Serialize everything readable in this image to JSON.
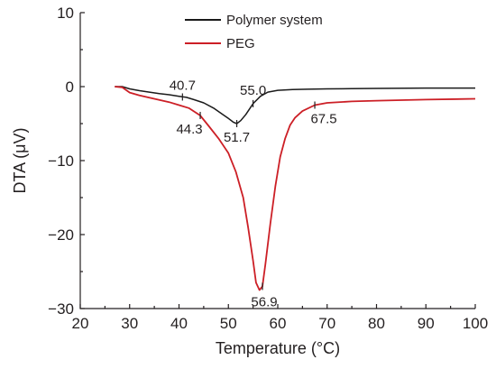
{
  "chart_data": {
    "type": "line",
    "xlabel": "Temperature (°C)",
    "ylabel": "DTA (μV)",
    "xlim": [
      20,
      100
    ],
    "ylim": [
      -30,
      10
    ],
    "xticks": [
      20,
      30,
      40,
      50,
      60,
      70,
      80,
      90,
      100
    ],
    "yticks": [
      10,
      0,
      -10,
      -20,
      -30
    ],
    "grid": false,
    "legend_position": "top-center",
    "series": [
      {
        "name": "Polymer system",
        "color": "#1a1a1a",
        "x": [
          27.0,
          28.5,
          30,
          32,
          34,
          36,
          38,
          40,
          41.5,
          43,
          45,
          47,
          48.5,
          50,
          51,
          51.7,
          52.5,
          53.5,
          55,
          56.5,
          58,
          60,
          63,
          66,
          70,
          75,
          80,
          90,
          100
        ],
        "y": [
          0.0,
          0.0,
          -0.3,
          -0.55,
          -0.75,
          -0.95,
          -1.1,
          -1.3,
          -1.45,
          -1.75,
          -2.2,
          -2.9,
          -3.6,
          -4.3,
          -4.8,
          -5.0,
          -4.6,
          -3.8,
          -2.3,
          -1.3,
          -0.75,
          -0.5,
          -0.4,
          -0.35,
          -0.3,
          -0.28,
          -0.25,
          -0.2,
          -0.2
        ]
      },
      {
        "name": "PEG",
        "color": "#cc1f26",
        "x": [
          27.0,
          28.5,
          30,
          32,
          34,
          36,
          38,
          40,
          42,
          44.3,
          46,
          48,
          50,
          51.5,
          53,
          54,
          55,
          55.6,
          56.3,
          56.9,
          57.5,
          58.5,
          59.5,
          60.5,
          61.5,
          62.5,
          63.5,
          65,
          67.5,
          70,
          75,
          80,
          90,
          100
        ],
        "y": [
          0.0,
          -0.1,
          -0.8,
          -1.2,
          -1.5,
          -1.8,
          -2.1,
          -2.5,
          -2.9,
          -3.9,
          -5.3,
          -7.0,
          -9.0,
          -11.5,
          -15.0,
          -19.0,
          -23.5,
          -26.5,
          -27.5,
          -27.0,
          -24.0,
          -18.5,
          -13.5,
          -9.5,
          -7.0,
          -5.2,
          -4.2,
          -3.3,
          -2.5,
          -2.2,
          -2.0,
          -1.9,
          -1.75,
          -1.65
        ]
      }
    ],
    "annotations": [
      {
        "text": "40.7",
        "series": 0,
        "x": 40.7,
        "y": -1.4
      },
      {
        "text": "55.0",
        "series": 0,
        "x": 55.0,
        "y": -2.3
      },
      {
        "text": "51.7",
        "series": 0,
        "x": 51.7,
        "y": -5.0
      },
      {
        "text": "44.3",
        "series": 1,
        "x": 44.3,
        "y": -3.9
      },
      {
        "text": "67.5",
        "series": 1,
        "x": 67.5,
        "y": -2.5
      },
      {
        "text": "56.9",
        "series": 1,
        "x": 56.9,
        "y": -27.0
      }
    ]
  }
}
